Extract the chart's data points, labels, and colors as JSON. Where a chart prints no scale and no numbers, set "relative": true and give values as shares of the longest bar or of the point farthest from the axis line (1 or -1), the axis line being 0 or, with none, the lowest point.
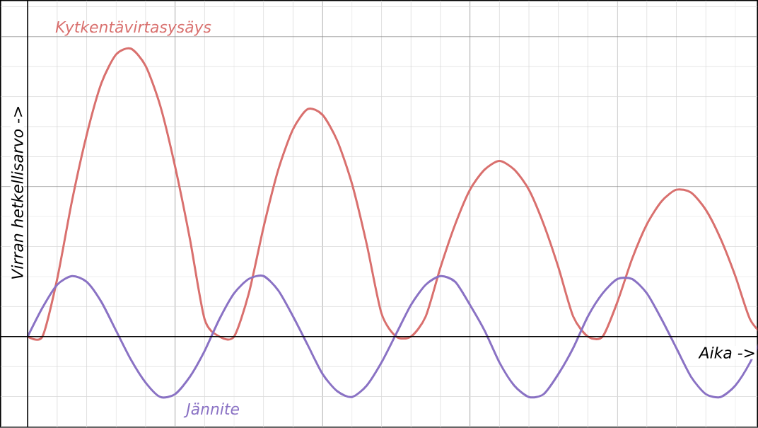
{
  "chart_data": {
    "type": "line",
    "relative": true,
    "grid": true,
    "xlabel": "Aika ->",
    "ylabel": "Virran hetkellisarvo ->",
    "categories": [
      null,
      null,
      null,
      null,
      null,
      null,
      null,
      null,
      null,
      null,
      null,
      null,
      null,
      null,
      null,
      null,
      null,
      null,
      null,
      null,
      null,
      null,
      null,
      null,
      null,
      null,
      null,
      null,
      null,
      null,
      null,
      null,
      null,
      null,
      null,
      null,
      null,
      null,
      null,
      null,
      null,
      null,
      null,
      null,
      null,
      null,
      null,
      null,
      null,
      null,
      null
    ],
    "series": [
      {
        "name": "Kytkentävirtasysäys",
        "color": "#d9706e",
        "values": [
          0,
          0,
          0.2,
          0.47,
          0.7,
          0.88,
          0.98,
          1.0,
          0.94,
          0.8,
          0.59,
          0.34,
          0.06,
          0,
          0,
          0.15,
          0.38,
          0.58,
          0.72,
          0.79,
          0.77,
          0.68,
          0.53,
          0.32,
          0.08,
          0,
          0,
          0.07,
          0.24,
          0.39,
          0.51,
          0.58,
          0.61,
          0.58,
          0.51,
          0.39,
          0.24,
          0.07,
          0,
          0,
          0.12,
          0.27,
          0.39,
          0.47,
          0.51,
          0.5,
          0.44,
          0.34,
          0.21,
          0.06,
          0
        ]
      },
      {
        "name": "Jännite",
        "color": "#8a72c4",
        "values": [
          0,
          0.1,
          0.18,
          0.21,
          0.19,
          0.12,
          0.02,
          -0.08,
          -0.16,
          -0.21,
          -0.2,
          -0.14,
          -0.05,
          0.06,
          0.15,
          0.2,
          0.21,
          0.16,
          0.07,
          -0.03,
          -0.13,
          -0.19,
          -0.21,
          -0.17,
          -0.09,
          0.01,
          0.11,
          0.18,
          0.21,
          0.19,
          0.11,
          0.02,
          -0.09,
          -0.17,
          -0.21,
          -0.2,
          -0.13,
          -0.04,
          0.07,
          0.15,
          0.2,
          0.2,
          0.15,
          0.06,
          -0.04,
          -0.14,
          -0.2,
          -0.21,
          -0.17,
          -0.09,
          0.02
        ]
      }
    ]
  }
}
